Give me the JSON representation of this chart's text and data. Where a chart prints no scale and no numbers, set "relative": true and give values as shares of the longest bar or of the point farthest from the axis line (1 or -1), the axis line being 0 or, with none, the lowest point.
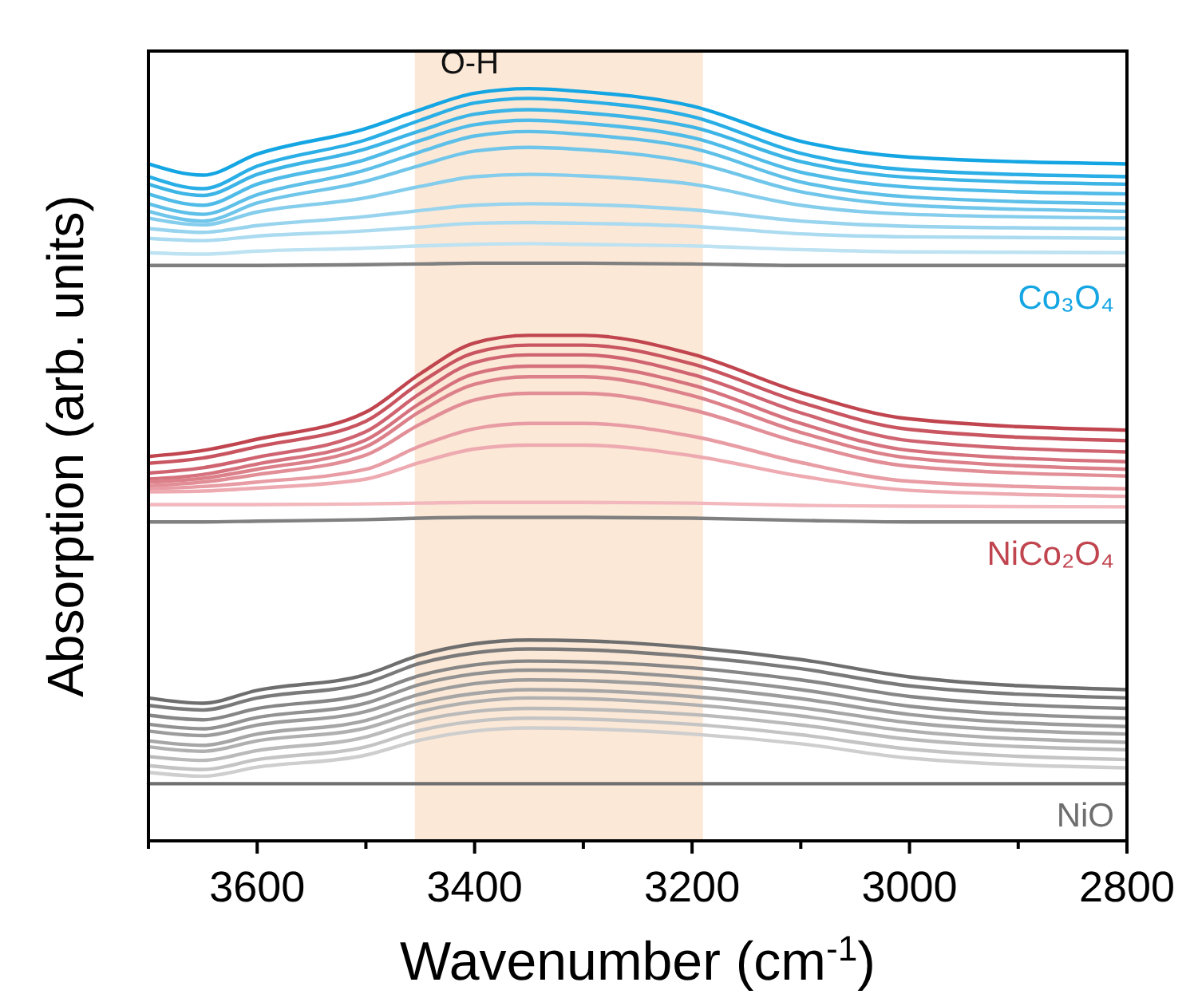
{
  "chart_data": {
    "type": "line",
    "xlabel": "Wavenumber (cm$^{-1}$)",
    "ylabel": "Absorption (arb. units)",
    "relative": true,
    "xlim": [
      3700,
      2800
    ],
    "xticks": [
      {
        "value": 3700,
        "label": null
      },
      3600,
      {
        "value": 3500,
        "label": null
      },
      3400,
      {
        "value": 3300,
        "label": null
      },
      3200,
      {
        "value": 3100,
        "label": null
      },
      3000,
      {
        "value": 2900,
        "label": null
      },
      2800
    ],
    "x": [
      3700,
      3650,
      3600,
      3500,
      3450,
      3400,
      3350,
      3300,
      3200,
      3100,
      3000,
      2800
    ],
    "bands": [
      {
        "axis": "x",
        "from": 3455,
        "to": 3190,
        "label": "O-H",
        "color": "#fce8d6"
      }
    ],
    "series": [
      {
        "name": "Co₃O₄",
        "color": "#14a5e3",
        "values": [
          0.9,
          0.885,
          0.913,
          0.947,
          0.972,
          0.994,
          1.0,
          0.996,
          0.977,
          0.93,
          0.909,
          0.9
        ]
      },
      {
        "color": "#2aaee6",
        "values": [
          0.883,
          0.867,
          0.897,
          0.932,
          0.958,
          0.981,
          0.987,
          0.983,
          0.963,
          0.914,
          0.892,
          0.883
        ]
      },
      {
        "color": "#3cb4e6",
        "values": [
          0.873,
          0.858,
          0.886,
          0.92,
          0.944,
          0.966,
          0.972,
          0.968,
          0.949,
          0.903,
          0.882,
          0.873
        ]
      },
      {
        "color": "#4fbbe8",
        "values": [
          0.86,
          0.845,
          0.873,
          0.906,
          0.931,
          0.952,
          0.958,
          0.954,
          0.935,
          0.889,
          0.869,
          0.86
        ]
      },
      {
        "color": "#5ec0e8",
        "values": [
          0.847,
          0.833,
          0.859,
          0.892,
          0.916,
          0.937,
          0.943,
          0.939,
          0.921,
          0.876,
          0.856,
          0.847
        ]
      },
      {
        "color": "#70c6ea",
        "values": [
          0.837,
          0.824,
          0.848,
          0.877,
          0.898,
          0.917,
          0.922,
          0.919,
          0.902,
          0.863,
          0.845,
          0.837
        ]
      },
      {
        "color": "#85cdec",
        "values": [
          0.828,
          0.819,
          0.836,
          0.855,
          0.87,
          0.883,
          0.886,
          0.884,
          0.873,
          0.845,
          0.833,
          0.828
        ]
      },
      {
        "color": "#98d4ee",
        "values": [
          0.814,
          0.809,
          0.818,
          0.83,
          0.838,
          0.845,
          0.847,
          0.846,
          0.839,
          0.824,
          0.817,
          0.814
        ]
      },
      {
        "color": "#abdbf0",
        "values": [
          0.801,
          0.798,
          0.804,
          0.811,
          0.816,
          0.821,
          0.822,
          0.821,
          0.817,
          0.807,
          0.803,
          0.801
        ]
      },
      {
        "color": "#bde2f2",
        "values": [
          0.782,
          0.78,
          0.784,
          0.788,
          0.791,
          0.793,
          0.794,
          0.793,
          0.791,
          0.786,
          0.783,
          0.782
        ]
      },
      {
        "color": "#808080",
        "values": [
          0.765,
          0.765,
          0.765,
          0.766,
          0.767,
          0.768,
          0.768,
          0.768,
          0.767,
          0.765,
          0.765,
          0.765
        ]
      },
      {
        "name": "NiCo₂O₄",
        "color": "#c0454f",
        "values": [
          0.511,
          0.519,
          0.534,
          0.57,
          0.621,
          0.662,
          0.672,
          0.672,
          0.647,
          0.596,
          0.561,
          0.546
        ]
      },
      {
        "color": "#c85560",
        "values": [
          0.502,
          0.509,
          0.524,
          0.558,
          0.609,
          0.649,
          0.659,
          0.659,
          0.634,
          0.583,
          0.547,
          0.532
        ]
      },
      {
        "color": "#cf6470",
        "values": [
          0.489,
          0.496,
          0.51,
          0.544,
          0.595,
          0.636,
          0.646,
          0.646,
          0.62,
          0.569,
          0.532,
          0.517
        ]
      },
      {
        "color": "#d6727d",
        "values": [
          0.481,
          0.487,
          0.501,
          0.533,
          0.582,
          0.621,
          0.631,
          0.631,
          0.606,
          0.555,
          0.519,
          0.504
        ]
      },
      {
        "color": "#dc808a",
        "values": [
          0.477,
          0.482,
          0.494,
          0.524,
          0.571,
          0.607,
          0.617,
          0.617,
          0.592,
          0.543,
          0.509,
          0.494
        ]
      },
      {
        "color": "#e28e97",
        "values": [
          0.472,
          0.477,
          0.487,
          0.513,
          0.554,
          0.586,
          0.595,
          0.595,
          0.573,
          0.529,
          0.498,
          0.485
        ]
      },
      {
        "color": "#e89ca4",
        "values": [
          0.468,
          0.471,
          0.477,
          0.494,
          0.525,
          0.548,
          0.555,
          0.555,
          0.538,
          0.503,
          0.478,
          0.468
        ]
      },
      {
        "color": "#eeaab1",
        "values": [
          0.464,
          0.465,
          0.469,
          0.481,
          0.503,
          0.521,
          0.526,
          0.526,
          0.512,
          0.485,
          0.466,
          0.458
        ]
      },
      {
        "color": "#f2b8be",
        "values": [
          0.447,
          0.447,
          0.447,
          0.448,
          0.449,
          0.45,
          0.45,
          0.45,
          0.449,
          0.446,
          0.445,
          0.444
        ]
      },
      {
        "color": "#808080",
        "values": [
          0.424,
          0.424,
          0.425,
          0.427,
          0.429,
          0.43,
          0.43,
          0.43,
          0.429,
          0.426,
          0.424,
          0.424
        ]
      },
      {
        "name": "NiO",
        "color": "#6e6e6e",
        "values": [
          0.19,
          0.183,
          0.2,
          0.221,
          0.247,
          0.262,
          0.267,
          0.266,
          0.257,
          0.241,
          0.218,
          0.201
        ]
      },
      {
        "color": "#7a7a7a",
        "values": [
          0.18,
          0.174,
          0.19,
          0.21,
          0.236,
          0.25,
          0.255,
          0.254,
          0.245,
          0.229,
          0.206,
          0.19
        ]
      },
      {
        "color": "#868686",
        "values": [
          0.167,
          0.161,
          0.176,
          0.195,
          0.22,
          0.234,
          0.239,
          0.238,
          0.23,
          0.214,
          0.192,
          0.176
        ]
      },
      {
        "color": "#929292",
        "values": [
          0.155,
          0.149,
          0.164,
          0.183,
          0.208,
          0.222,
          0.227,
          0.226,
          0.217,
          0.201,
          0.179,
          0.163
        ]
      },
      {
        "color": "#9c9c9c",
        "values": [
          0.146,
          0.14,
          0.154,
          0.172,
          0.195,
          0.209,
          0.214,
          0.213,
          0.205,
          0.189,
          0.168,
          0.152
        ]
      },
      {
        "color": "#a6a6a6",
        "values": [
          0.133,
          0.127,
          0.142,
          0.16,
          0.183,
          0.196,
          0.201,
          0.2,
          0.192,
          0.177,
          0.157,
          0.142
        ]
      },
      {
        "color": "#b0b0b0",
        "values": [
          0.125,
          0.119,
          0.133,
          0.15,
          0.172,
          0.185,
          0.19,
          0.189,
          0.181,
          0.166,
          0.146,
          0.131
        ]
      },
      {
        "color": "#bababa",
        "values": [
          0.112,
          0.107,
          0.12,
          0.138,
          0.16,
          0.172,
          0.176,
          0.175,
          0.168,
          0.154,
          0.135,
          0.121
        ]
      },
      {
        "color": "#c4c4c4",
        "values": [
          0.1,
          0.095,
          0.108,
          0.125,
          0.147,
          0.159,
          0.163,
          0.162,
          0.155,
          0.141,
          0.122,
          0.108
        ]
      },
      {
        "color": "#cecece",
        "values": [
          0.091,
          0.086,
          0.098,
          0.114,
          0.134,
          0.146,
          0.15,
          0.149,
          0.142,
          0.129,
          0.11,
          0.097
        ]
      },
      {
        "color": "#707070",
        "values": [
          0.076,
          0.076,
          0.076,
          0.076,
          0.076,
          0.076,
          0.076,
          0.076,
          0.076,
          0.076,
          0.076,
          0.076
        ]
      }
    ]
  }
}
